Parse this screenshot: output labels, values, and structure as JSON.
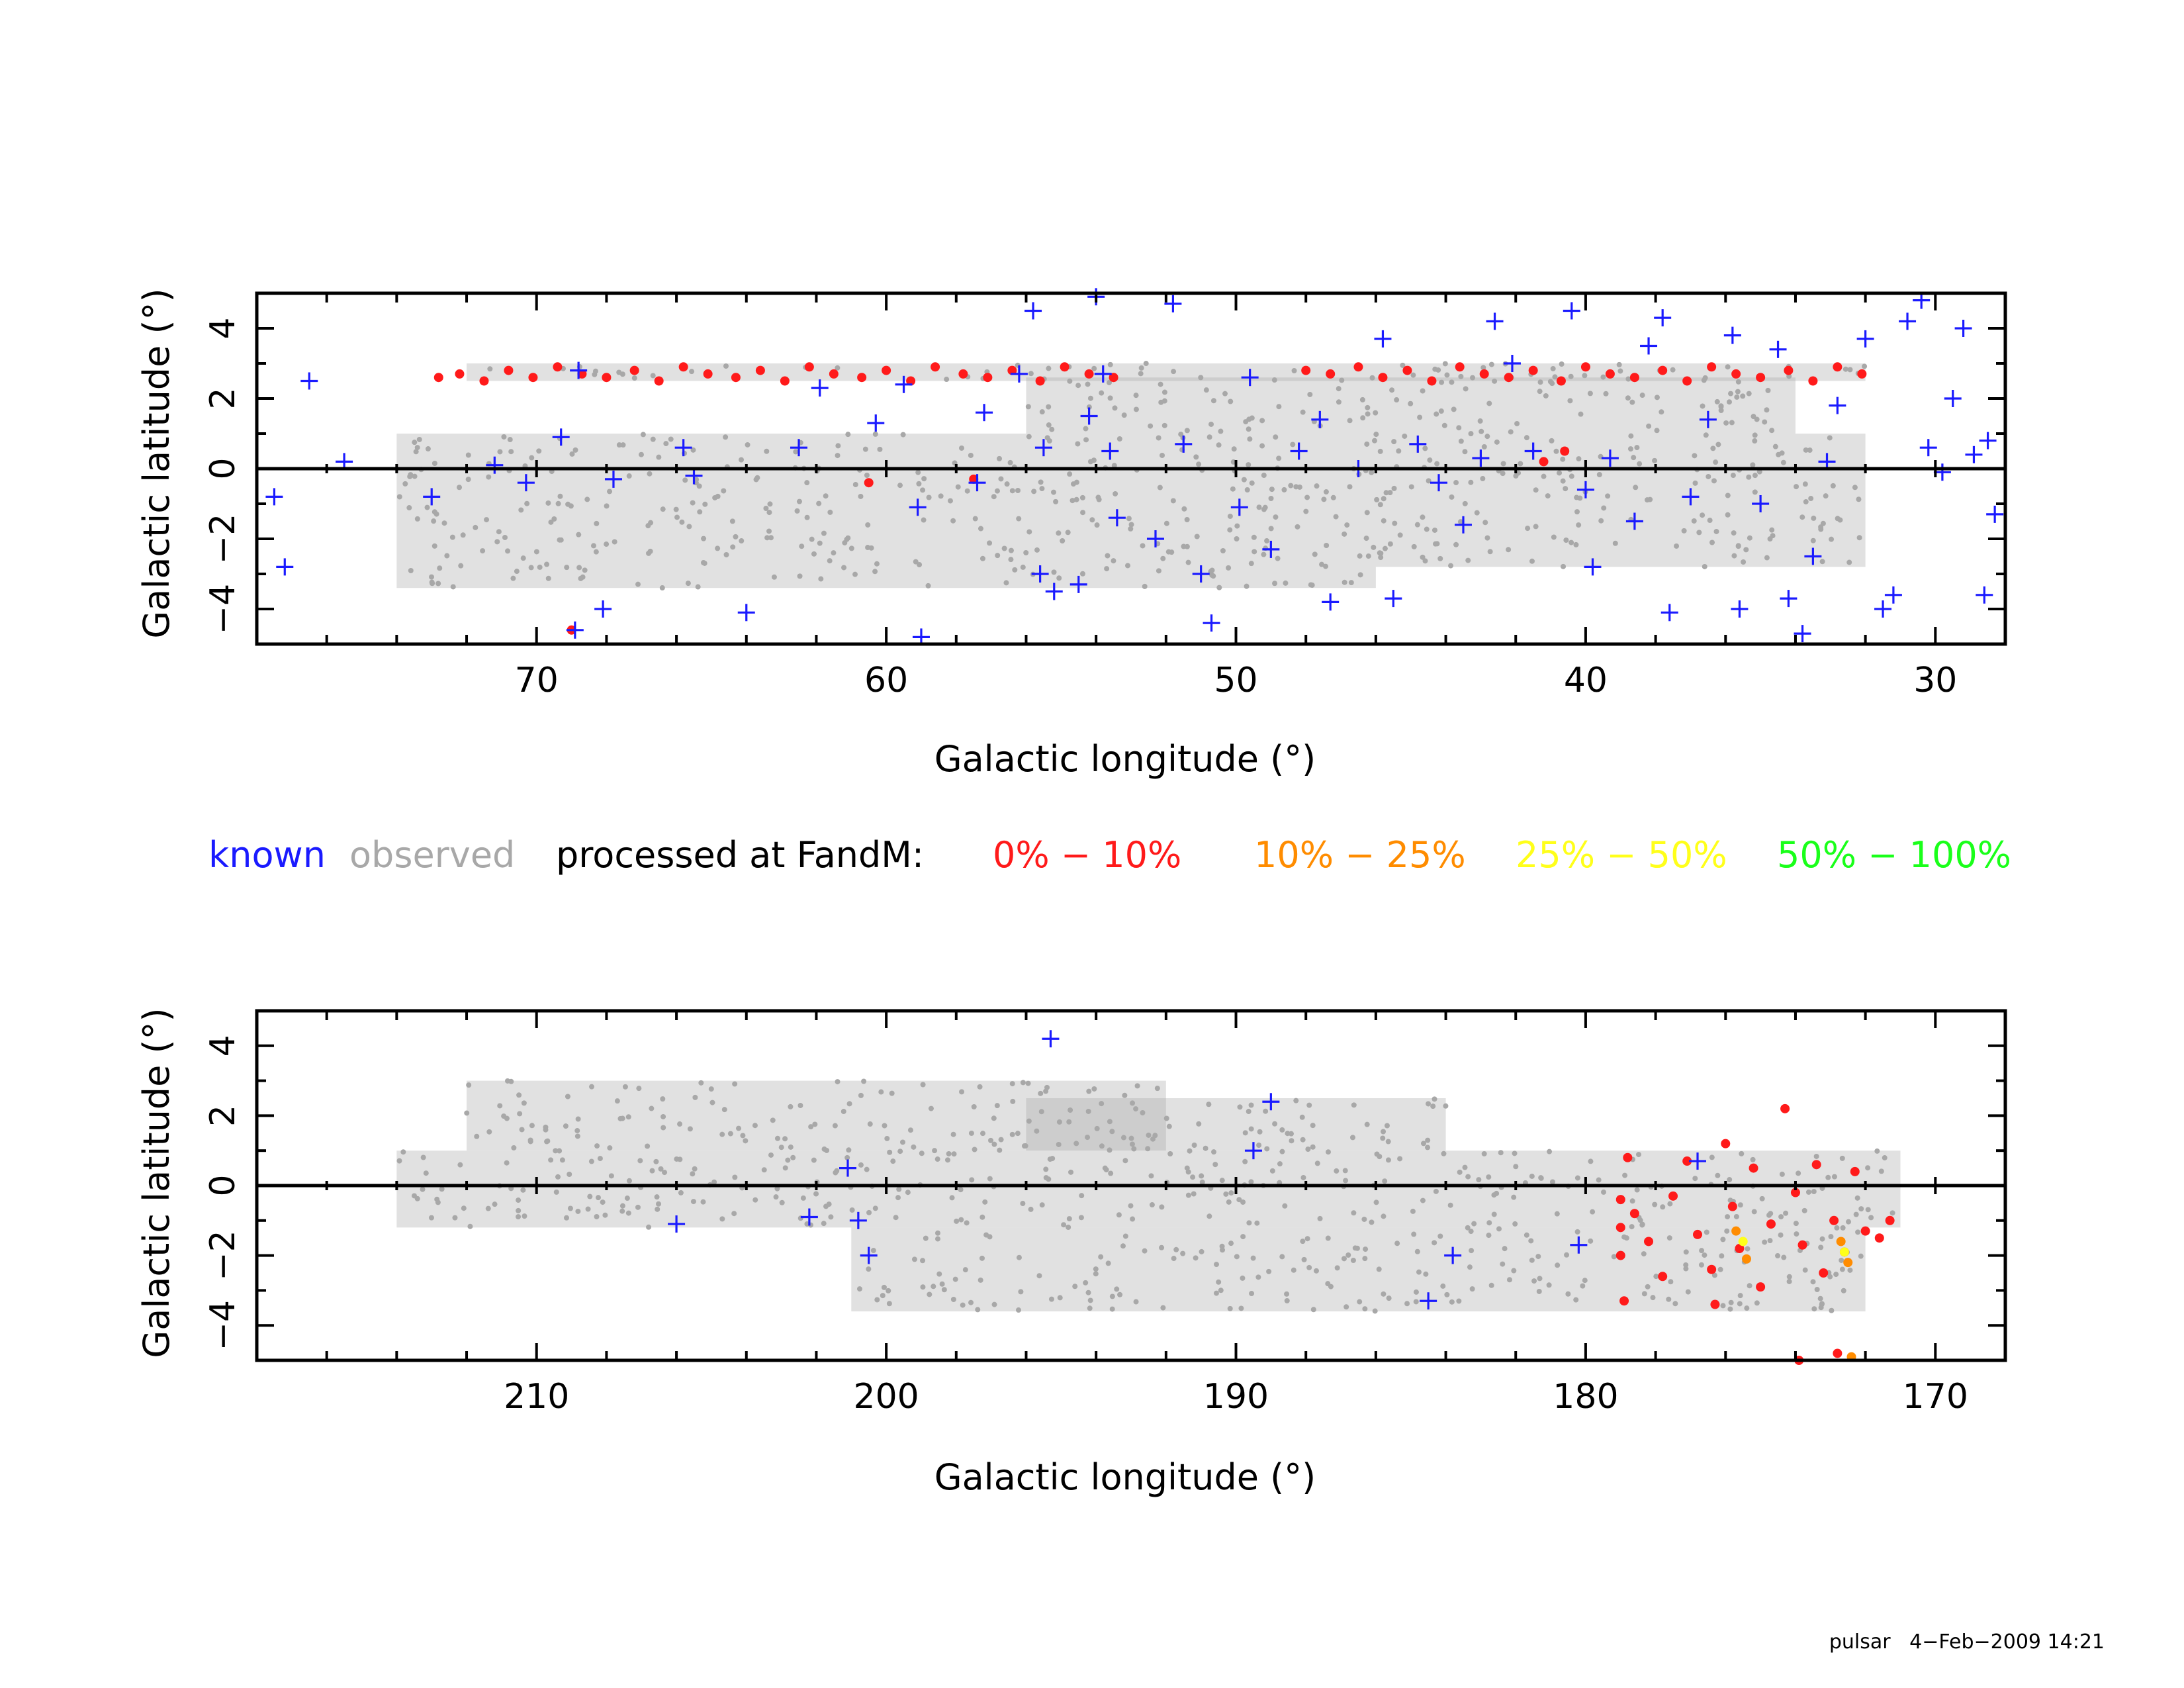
{
  "colors": {
    "known": "#1a1aff",
    "observed": "#a8a8a8",
    "processed_label": "#000000",
    "bin_0_10": "#ff1a1a",
    "bin_10_25": "#ff8c00",
    "bin_25_50": "#ffff1a",
    "bin_50_100": "#1aff1a"
  },
  "legend": {
    "known": "known",
    "observed": "observed",
    "processed": "processed at FandM:",
    "bin_0_10": "0% − 10%",
    "bin_10_25": "10% − 25%",
    "bin_25_50": "25% − 50%",
    "bin_50_100": "50% − 100%"
  },
  "footer": {
    "text": "pulsar   4−Feb−2009 14:21"
  },
  "chart_data": [
    {
      "type": "scatter",
      "xlabel": "Galactic longitude (°)",
      "ylabel": "Galactic latitude (°)",
      "xlim": [
        78,
        28
      ],
      "ylim": [
        -5,
        5
      ],
      "xticks": [
        70,
        60,
        50,
        40,
        30
      ],
      "yticks": [
        -4,
        -2,
        0,
        2,
        4
      ],
      "xtick_labels": [
        "70",
        "60",
        "50",
        "40",
        "30"
      ],
      "ytick_labels": [
        "−4",
        "−2",
        "0",
        "2",
        "4"
      ],
      "x_minor_step": 2,
      "y_minor_step": 1,
      "zero_line": true,
      "observed_regions": [
        {
          "lmin": 32,
          "lmax": 74,
          "bmin": -2.8,
          "bmax": 1.0
        },
        {
          "lmin": 34,
          "lmax": 56,
          "bmin": 1.0,
          "bmax": 2.6
        },
        {
          "lmin": 46,
          "lmax": 74,
          "bmin": -3.4,
          "bmax": -2.8
        },
        {
          "lmin": 32,
          "lmax": 72,
          "bmin": 2.5,
          "bmax": 3.0
        }
      ],
      "processed_0_10": [
        [
          72.8,
          2.6
        ],
        [
          72.2,
          2.7
        ],
        [
          71.5,
          2.5
        ],
        [
          70.8,
          2.8
        ],
        [
          70.1,
          2.6
        ],
        [
          69.4,
          2.9
        ],
        [
          68.7,
          2.7
        ],
        [
          68.0,
          2.6
        ],
        [
          67.2,
          2.8
        ],
        [
          66.5,
          2.5
        ],
        [
          65.8,
          2.9
        ],
        [
          65.1,
          2.7
        ],
        [
          64.3,
          2.6
        ],
        [
          63.6,
          2.8
        ],
        [
          62.9,
          2.5
        ],
        [
          62.2,
          2.9
        ],
        [
          61.5,
          2.7
        ],
        [
          60.7,
          2.6
        ],
        [
          60.0,
          2.8
        ],
        [
          59.3,
          2.5
        ],
        [
          58.6,
          2.9
        ],
        [
          57.8,
          2.7
        ],
        [
          57.1,
          2.6
        ],
        [
          56.4,
          2.8
        ],
        [
          55.6,
          2.5
        ],
        [
          54.9,
          2.9
        ],
        [
          54.2,
          2.7
        ],
        [
          53.5,
          2.6
        ],
        [
          48.0,
          2.8
        ],
        [
          47.3,
          2.7
        ],
        [
          46.5,
          2.9
        ],
        [
          45.8,
          2.6
        ],
        [
          45.1,
          2.8
        ],
        [
          44.4,
          2.5
        ],
        [
          43.6,
          2.9
        ],
        [
          42.9,
          2.7
        ],
        [
          42.2,
          2.6
        ],
        [
          41.5,
          2.8
        ],
        [
          40.7,
          2.5
        ],
        [
          40.0,
          2.9
        ],
        [
          39.3,
          2.7
        ],
        [
          38.6,
          2.6
        ],
        [
          37.8,
          2.8
        ],
        [
          37.1,
          2.5
        ],
        [
          36.4,
          2.9
        ],
        [
          35.7,
          2.7
        ],
        [
          35.0,
          2.6
        ],
        [
          34.2,
          2.8
        ],
        [
          33.5,
          2.5
        ],
        [
          32.8,
          2.9
        ],
        [
          32.1,
          2.7
        ],
        [
          57.5,
          -0.3
        ],
        [
          60.5,
          -0.4
        ],
        [
          69.0,
          -4.6
        ],
        [
          41.2,
          0.2
        ],
        [
          40.6,
          0.5
        ]
      ],
      "known": [
        [
          76.5,
          2.5
        ],
        [
          77.5,
          -0.8
        ],
        [
          77.2,
          -2.8
        ],
        [
          75.5,
          0.2
        ],
        [
          73.0,
          -0.8
        ],
        [
          71.2,
          0.1
        ],
        [
          70.3,
          -0.4
        ],
        [
          69.3,
          0.9
        ],
        [
          68.8,
          2.8
        ],
        [
          68.9,
          -4.6
        ],
        [
          68.1,
          -4.0
        ],
        [
          67.8,
          -0.3
        ],
        [
          65.8,
          0.6
        ],
        [
          65.5,
          -0.2
        ],
        [
          64.0,
          -4.1
        ],
        [
          62.5,
          0.6
        ],
        [
          61.9,
          2.3
        ],
        [
          60.3,
          1.3
        ],
        [
          59.5,
          2.4
        ],
        [
          59.1,
          -1.1
        ],
        [
          59.0,
          -4.8
        ],
        [
          57.4,
          -0.4
        ],
        [
          57.2,
          1.6
        ],
        [
          56.2,
          2.7
        ],
        [
          55.8,
          4.5
        ],
        [
          55.5,
          0.6
        ],
        [
          55.6,
          -3.0
        ],
        [
          55.2,
          -3.5
        ],
        [
          54.5,
          -3.3
        ],
        [
          54.2,
          1.5
        ],
        [
          53.8,
          2.7
        ],
        [
          54.0,
          4.9
        ],
        [
          53.6,
          0.5
        ],
        [
          53.4,
          -1.4
        ],
        [
          52.3,
          -2.0
        ],
        [
          51.8,
          4.7
        ],
        [
          51.5,
          0.7
        ],
        [
          51.0,
          -3.0
        ],
        [
          50.7,
          -4.4
        ],
        [
          49.9,
          -1.1
        ],
        [
          49.6,
          2.6
        ],
        [
          49.0,
          -2.3
        ],
        [
          48.2,
          0.5
        ],
        [
          47.6,
          1.4
        ],
        [
          47.3,
          -3.8
        ],
        [
          46.5,
          0.0
        ],
        [
          45.8,
          3.7
        ],
        [
          45.5,
          -3.7
        ],
        [
          44.8,
          0.7
        ],
        [
          44.2,
          -0.4
        ],
        [
          43.5,
          -1.6
        ],
        [
          43.0,
          0.3
        ],
        [
          42.6,
          4.2
        ],
        [
          42.1,
          3.0
        ],
        [
          41.5,
          0.5
        ],
        [
          40.4,
          4.5
        ],
        [
          40.0,
          -0.6
        ],
        [
          39.8,
          -2.8
        ],
        [
          39.3,
          0.3
        ],
        [
          38.6,
          -1.5
        ],
        [
          38.2,
          3.5
        ],
        [
          37.8,
          4.3
        ],
        [
          37.6,
          -4.1
        ],
        [
          37.0,
          -0.8
        ],
        [
          36.5,
          1.4
        ],
        [
          35.8,
          3.8
        ],
        [
          35.6,
          -4.0
        ],
        [
          35.0,
          -1.0
        ],
        [
          34.5,
          3.4
        ],
        [
          34.2,
          -3.7
        ],
        [
          33.8,
          -4.7
        ],
        [
          33.5,
          -2.5
        ],
        [
          33.1,
          0.2
        ],
        [
          32.8,
          1.8
        ],
        [
          32.0,
          3.7
        ],
        [
          31.5,
          -4.0
        ],
        [
          31.2,
          -3.6
        ],
        [
          30.8,
          4.2
        ],
        [
          30.4,
          4.8
        ],
        [
          29.8,
          -0.1
        ],
        [
          29.2,
          4.0
        ],
        [
          28.9,
          0.4
        ],
        [
          28.6,
          -3.6
        ],
        [
          28.3,
          -1.3
        ],
        [
          28.5,
          0.8
        ],
        [
          29.5,
          2.0
        ],
        [
          30.2,
          0.6
        ]
      ]
    },
    {
      "type": "scatter",
      "xlabel": "Galactic longitude (°)",
      "ylabel": "Galactic latitude (°)",
      "xlim": [
        218,
        168
      ],
      "ylim": [
        -5,
        5
      ],
      "xticks": [
        210,
        200,
        190,
        180,
        170
      ],
      "yticks": [
        -4,
        -2,
        0,
        2,
        4
      ],
      "xtick_labels": [
        "210",
        "200",
        "190",
        "180",
        "170"
      ],
      "ytick_labels": [
        "−4",
        "−2",
        "0",
        "2",
        "4"
      ],
      "x_minor_step": 2,
      "y_minor_step": 1,
      "zero_line": true,
      "observed_regions": [
        {
          "lmin": 171,
          "lmax": 214,
          "bmin": -1.2,
          "bmax": 1.0
        },
        {
          "lmin": 192,
          "lmax": 212,
          "bmin": 1.0,
          "bmax": 3.0
        },
        {
          "lmin": 172,
          "lmax": 201,
          "bmin": -3.6,
          "bmax": -1.2
        },
        {
          "lmin": 184,
          "lmax": 196,
          "bmin": 1.0,
          "bmax": 2.5
        }
      ],
      "processed_0_10": [
        [
          179.0,
          -0.4
        ],
        [
          179.0,
          -1.2
        ],
        [
          179.0,
          -2.0
        ],
        [
          178.8,
          0.8
        ],
        [
          178.6,
          -0.8
        ],
        [
          178.2,
          -1.6
        ],
        [
          177.8,
          -2.6
        ],
        [
          177.5,
          -0.3
        ],
        [
          177.1,
          0.7
        ],
        [
          176.8,
          -1.4
        ],
        [
          176.4,
          -2.4
        ],
        [
          176.0,
          1.2
        ],
        [
          175.8,
          -0.6
        ],
        [
          175.6,
          -1.8
        ],
        [
          175.2,
          0.5
        ],
        [
          175.0,
          -2.9
        ],
        [
          174.7,
          -1.1
        ],
        [
          174.3,
          2.2
        ],
        [
          174.0,
          -0.2
        ],
        [
          173.8,
          -1.7
        ],
        [
          173.4,
          0.6
        ],
        [
          173.2,
          -2.5
        ],
        [
          172.9,
          -1.0
        ],
        [
          172.6,
          -1.9
        ],
        [
          172.3,
          0.4
        ],
        [
          172.0,
          -1.3
        ],
        [
          171.6,
          -1.5
        ],
        [
          171.3,
          -1.0
        ],
        [
          176.3,
          -3.4
        ],
        [
          178.9,
          -3.3
        ],
        [
          173.9,
          -5.0
        ],
        [
          172.8,
          -4.8
        ]
      ],
      "processed_10_25": [
        [
          175.7,
          -1.3
        ],
        [
          175.4,
          -2.1
        ],
        [
          172.7,
          -1.6
        ],
        [
          172.5,
          -2.2
        ],
        [
          172.4,
          -4.9
        ]
      ],
      "processed_25_50": [
        [
          175.5,
          -1.6
        ],
        [
          172.6,
          -1.9
        ]
      ],
      "known": [
        [
          206.0,
          -1.1
        ],
        [
          202.2,
          -0.9
        ],
        [
          201.1,
          0.5
        ],
        [
          200.8,
          -1.0
        ],
        [
          200.5,
          -2.0
        ],
        [
          195.3,
          4.2
        ],
        [
          189.0,
          2.4
        ],
        [
          189.5,
          1.0
        ],
        [
          184.5,
          -3.3
        ],
        [
          183.8,
          -2.0
        ],
        [
          180.2,
          -1.7
        ],
        [
          176.8,
          0.7
        ]
      ]
    }
  ]
}
